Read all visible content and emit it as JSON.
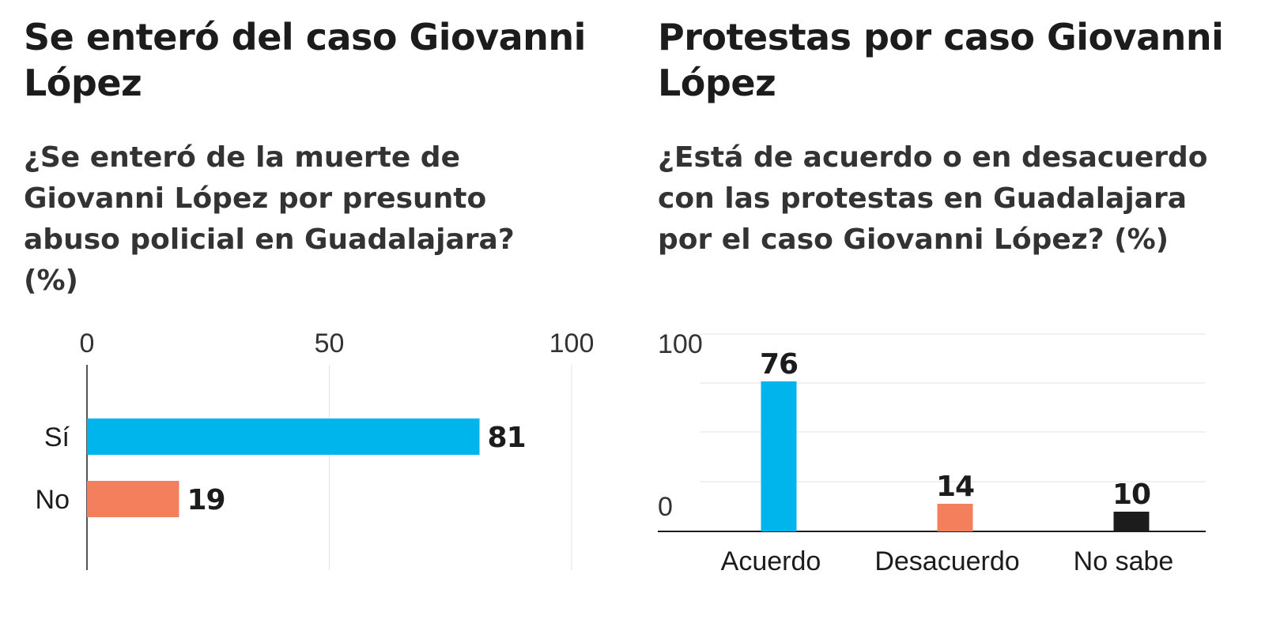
{
  "charts": [
    {
      "title": "Se enteró del caso Giovanni López",
      "subtitle": "¿Se enteró de la muerte de Giovanni López por presunto abuso policial en Guadalajara? (%)"
    },
    {
      "title": "Protestas por caso Giovanni López",
      "subtitle": "¿Está de acuerdo o en desacuerdo con las protestas en Guadalajara por el caso Giovanni López? (%)"
    }
  ],
  "chart_data": [
    {
      "type": "bar",
      "orientation": "horizontal",
      "title": "Se enteró del caso Giovanni López",
      "subtitle": "¿Se enteró de la muerte de Giovanni López por presunto abuso policial en Guadalajara? (%)",
      "categories": [
        "Sí",
        "No"
      ],
      "values": [
        81,
        19
      ],
      "colors": [
        "#00b5ec",
        "#f47f5c"
      ],
      "xlim": [
        0,
        100
      ],
      "ticks": [
        0,
        50,
        100
      ],
      "tick_labels": [
        "0",
        "50",
        "100"
      ],
      "xlabel": "",
      "ylabel": "",
      "grid": true
    },
    {
      "type": "bar",
      "orientation": "vertical",
      "title": "Protestas por caso Giovanni López",
      "subtitle": "¿Está de acuerdo o en desacuerdo con las protestas en Guadalajara por el caso Giovanni López? (%)",
      "categories": [
        "Acuerdo",
        "Desacuerdo",
        "No sabe"
      ],
      "values": [
        76,
        14,
        10
      ],
      "colors": [
        "#00b5ec",
        "#f47f5c",
        "#1c1c1c"
      ],
      "ylim": [
        0,
        100
      ],
      "ticks": [
        0,
        100
      ],
      "tick_labels": [
        "0",
        "100"
      ],
      "xlabel": "",
      "ylabel": "",
      "grid": true
    }
  ]
}
